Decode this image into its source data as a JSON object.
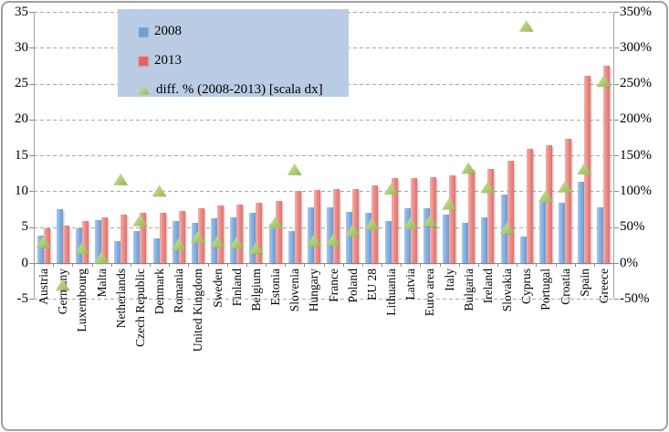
{
  "figure": {
    "background": "#ffffff",
    "border_color": "#a0a0a0"
  },
  "legend": {
    "background": "#b9cce4",
    "items": [
      {
        "label": "2008",
        "marker": "square-icon",
        "color": "#6d9ed8"
      },
      {
        "label": "2013",
        "marker": "square-icon",
        "color": "#e0665f"
      },
      {
        "label": "diff. % (2008-2013) [scala dx]",
        "marker": "triangle-icon",
        "color": "#a9c86a"
      }
    ]
  },
  "chart_data": {
    "type": "bar",
    "title": "",
    "xlabel": "",
    "ylabel": "",
    "categories": [
      "Austria",
      "Germany",
      "Luxembourg",
      "Malta",
      "Netherlands",
      "Czech Republic",
      "Denmark",
      "Romania",
      "United Kingdom",
      "Sweden",
      "Finland",
      "Belgium",
      "Estonia",
      "Slovenia",
      "Hungary",
      "France",
      "Poland",
      "EU 28",
      "Lithuania",
      "Latvia",
      "Euro area",
      "Italy",
      "Bulgaria",
      "Ireland",
      "Slovakia",
      "Cyprus",
      "Portugal",
      "Croatia",
      "Spain",
      "Greece"
    ],
    "series": [
      {
        "name": "2008",
        "type": "bar",
        "axis": "left",
        "color": "#7da7d9",
        "values": [
          3.8,
          7.5,
          4.9,
          6.0,
          3.1,
          4.4,
          3.5,
          5.8,
          5.6,
          6.2,
          6.4,
          7.0,
          5.5,
          4.4,
          7.8,
          7.8,
          7.1,
          7.0,
          5.8,
          7.7,
          7.6,
          6.7,
          5.6,
          6.4,
          9.6,
          3.7,
          8.5,
          8.4,
          11.3,
          7.8
        ]
      },
      {
        "name": "2013",
        "type": "bar",
        "axis": "left",
        "color": "#e8837e",
        "values": [
          4.9,
          5.2,
          5.9,
          6.4,
          6.7,
          7.0,
          7.0,
          7.3,
          7.6,
          8.0,
          8.2,
          8.4,
          8.6,
          10.1,
          10.2,
          10.3,
          10.3,
          10.8,
          11.8,
          11.9,
          12.0,
          12.2,
          13.0,
          13.1,
          14.2,
          15.9,
          16.4,
          17.3,
          26.1,
          27.5
        ]
      },
      {
        "name": "diff. % (2008-2013) [scala dx]",
        "type": "scatter",
        "marker": "triangle",
        "axis": "right",
        "color": "#a9c86a",
        "values_percent": [
          29,
          -31,
          20,
          7,
          116,
          59,
          100,
          26,
          36,
          29,
          28,
          20,
          56,
          130,
          31,
          32,
          45,
          54,
          103,
          55,
          58,
          82,
          132,
          105,
          48,
          330,
          93,
          106,
          131,
          253
        ]
      }
    ],
    "left_axis": {
      "min": -5,
      "max": 35,
      "tick_values": [
        35,
        30,
        25,
        20,
        15,
        10,
        5,
        0,
        -5
      ],
      "tick_labels": [
        "35",
        "30",
        "25",
        "20",
        "15",
        "10",
        "5",
        "0",
        "-5"
      ]
    },
    "right_axis": {
      "min_percent": -50,
      "max_percent": 350,
      "tick_labels": [
        "350%",
        "300%",
        "250%",
        "200%",
        "150%",
        "100%",
        "50%",
        "0%",
        "-50%"
      ]
    },
    "grid": {
      "horizontal": true,
      "style": "dashed"
    },
    "legend_position": "top-left-inside"
  }
}
